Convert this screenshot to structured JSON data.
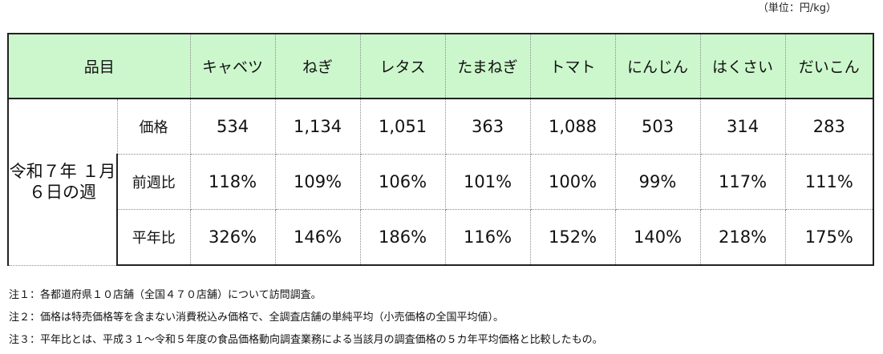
{
  "unit_label": "（単位：円/kg）",
  "table": {
    "item_header": "品目",
    "items": [
      "キャベツ",
      "ねぎ",
      "レタス",
      "たまねぎ",
      "トマト",
      "にんじん",
      "はくさい",
      "だいこん"
    ],
    "week_label": "令和７年 １月６日の週",
    "rows": [
      {
        "label": "価格",
        "values": [
          "534",
          "1,134",
          "1,051",
          "363",
          "1,088",
          "503",
          "314",
          "283"
        ]
      },
      {
        "label": "前週比",
        "values": [
          "118%",
          "109%",
          "106%",
          "101%",
          "100%",
          "99%",
          "117%",
          "111%"
        ]
      },
      {
        "label": "平年比",
        "values": [
          "326%",
          "146%",
          "186%",
          "116%",
          "152%",
          "140%",
          "218%",
          "175%"
        ]
      }
    ]
  },
  "notes": [
    "注１：各都道府県１０店舗（全国４７０店舗）について訪問調査。",
    "注２：価格は特売価格等を含まない消費税込み価格で、全調査店舗の単純平均（小売価格の全国平均値）。",
    "注３：平年比とは、平成３１～令和５年度の食品価格動向調査業務による当該月の調査価格の５カ年平均価格と比較したもの。"
  ]
}
